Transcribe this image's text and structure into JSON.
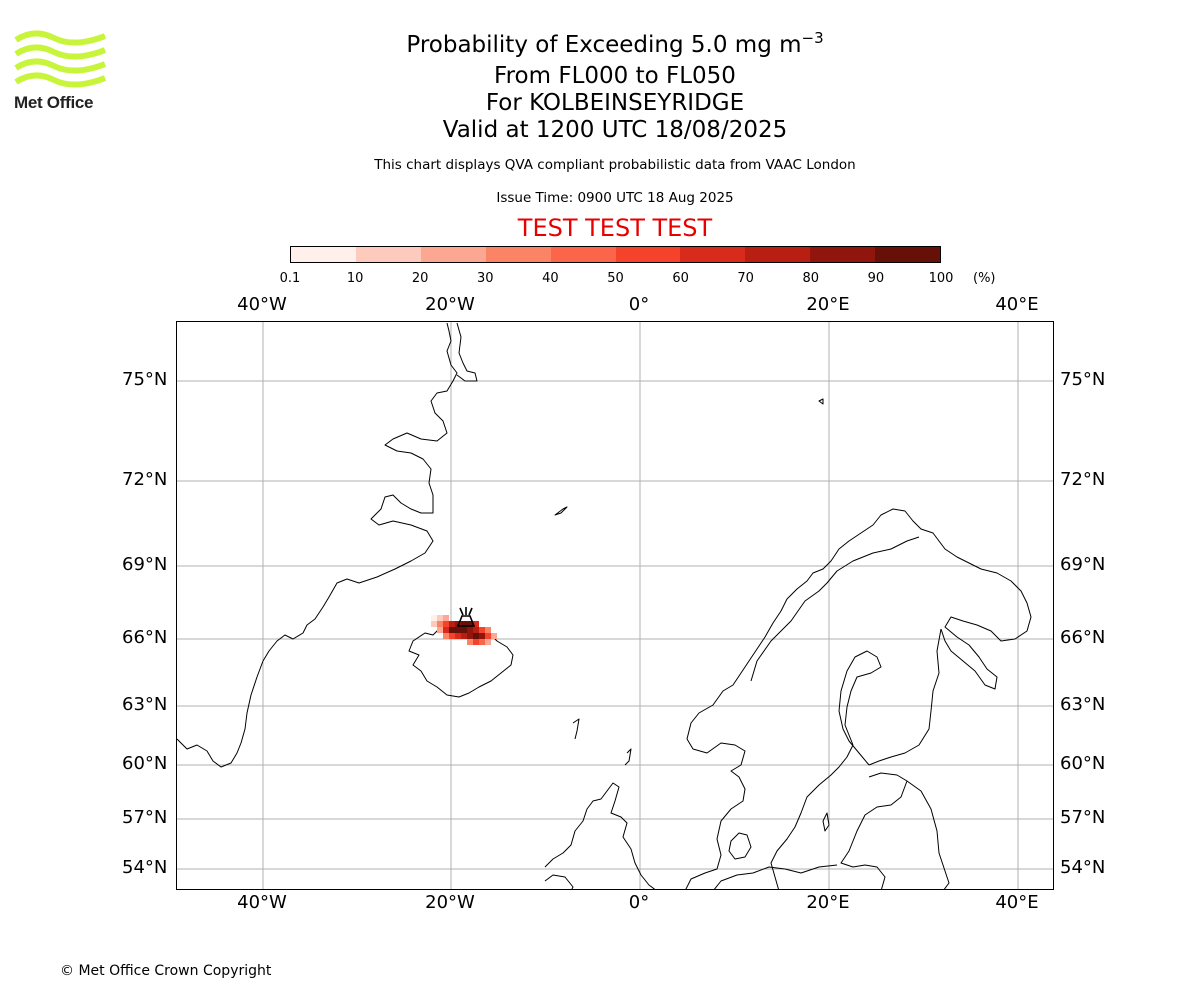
{
  "header": {
    "title_main": "Probability of Exceeding 5.0 mg m",
    "title_exp": "−3",
    "line2": "From FL000 to FL050",
    "line3": "For KOLBEINSEYRIDGE",
    "line4": "Valid at 1200 UTC 18/08/2025",
    "disclaimer": "This chart displays QVA compliant probabilistic data from VAAC London",
    "issue_time": "Issue Time: 0900 UTC 18 Aug 2025",
    "test_banner": "TEST TEST TEST"
  },
  "logo": {
    "text": "Met Office",
    "color": "#c8f53c"
  },
  "colorbar": {
    "ticks": [
      "0.1",
      "10",
      "20",
      "30",
      "40",
      "50",
      "60",
      "70",
      "80",
      "90",
      "100"
    ],
    "unit": "(%)",
    "colors": [
      "#fff0eb",
      "#fdcbbd",
      "#fca792",
      "#fc8466",
      "#fb6549",
      "#f5432b",
      "#d92b1b",
      "#b91e12",
      "#8f150d",
      "#671008"
    ]
  },
  "map": {
    "lon_labels": [
      "40°W",
      "20°W",
      "0°",
      "20°E",
      "40°E"
    ],
    "lat_labels": [
      "75°N",
      "72°N",
      "69°N",
      "66°N",
      "63°N",
      "60°N",
      "57°N",
      "54°N"
    ],
    "volcano": "Kolbeinsey Ridge",
    "grid_color": "#b0b0b0"
  },
  "footer": {
    "copyright": "© Met Office Crown Copyright"
  }
}
